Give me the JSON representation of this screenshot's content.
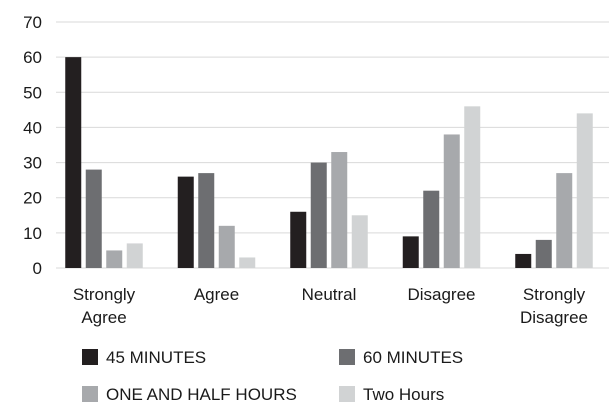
{
  "chart_data": {
    "type": "bar",
    "categories": [
      [
        "Strongly",
        "Agree"
      ],
      [
        "Agree"
      ],
      [
        "Neutral"
      ],
      [
        "Disagree"
      ],
      [
        "Strongly",
        "Disagree"
      ]
    ],
    "series": [
      {
        "name": "45 MINUTES",
        "color": "#231f20",
        "values": [
          60,
          26,
          16,
          9,
          4
        ]
      },
      {
        "name": "60 MINUTES",
        "color": "#6d6e71",
        "values": [
          28,
          27,
          30,
          22,
          8
        ]
      },
      {
        "name": "ONE AND HALF HOURS",
        "color": "#a7a9ac",
        "values": [
          5,
          12,
          33,
          38,
          27
        ]
      },
      {
        "name": "Two Hours",
        "color": "#d1d3d4",
        "values": [
          7,
          3,
          15,
          46,
          44
        ]
      }
    ],
    "title": "",
    "xlabel": "",
    "ylabel": "",
    "ylim": [
      0,
      70
    ],
    "yticks": [
      0,
      10,
      20,
      30,
      40,
      50,
      60,
      70
    ],
    "grid": "horizontal",
    "gridColor": "#d9d9d9",
    "legend": "bottom"
  }
}
